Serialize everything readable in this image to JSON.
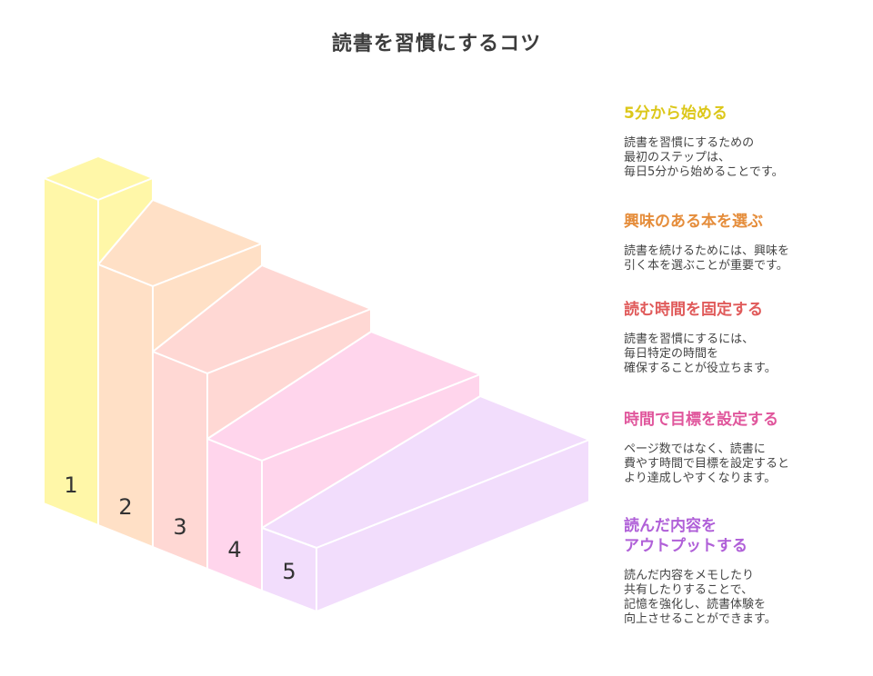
{
  "title": "読書を習慣にするコツ",
  "steps": [
    {
      "number": "1",
      "heading": "5分から始める",
      "description": "読書を習慣にするための\n最初のステップは、\n毎日5分から始めることです。",
      "color": "#fff7a8",
      "text_color": "#dcc71a"
    },
    {
      "number": "2",
      "heading": "興味のある本を選ぶ",
      "description": "読書を続けるためには、興味を\n引く本を選ぶことが重要です。",
      "color": "#ffe0c6",
      "text_color": "#e58d3b"
    },
    {
      "number": "3",
      "heading": "読む時間を固定する",
      "description": "読書を習慣にするには、\n毎日特定の時間を\n確保することが役立ちます。",
      "color": "#ffd8d4",
      "text_color": "#e05a5a"
    },
    {
      "number": "4",
      "heading": "時間で目標を設定する",
      "description": "ページ数ではなく、読書に\n費やす時間で目標を設定すると\nより達成しやすくなります。",
      "color": "#ffd5ec",
      "text_color": "#e0569c"
    },
    {
      "number": "5",
      "heading": "読んだ内容を\nアウトプットする",
      "description": "読んだ内容をメモしたり\n共有したりすることで、\n記憶を強化し、読書体験を\n向上させることができます。",
      "color": "#f2ddfc",
      "text_color": "#b060d8"
    }
  ]
}
